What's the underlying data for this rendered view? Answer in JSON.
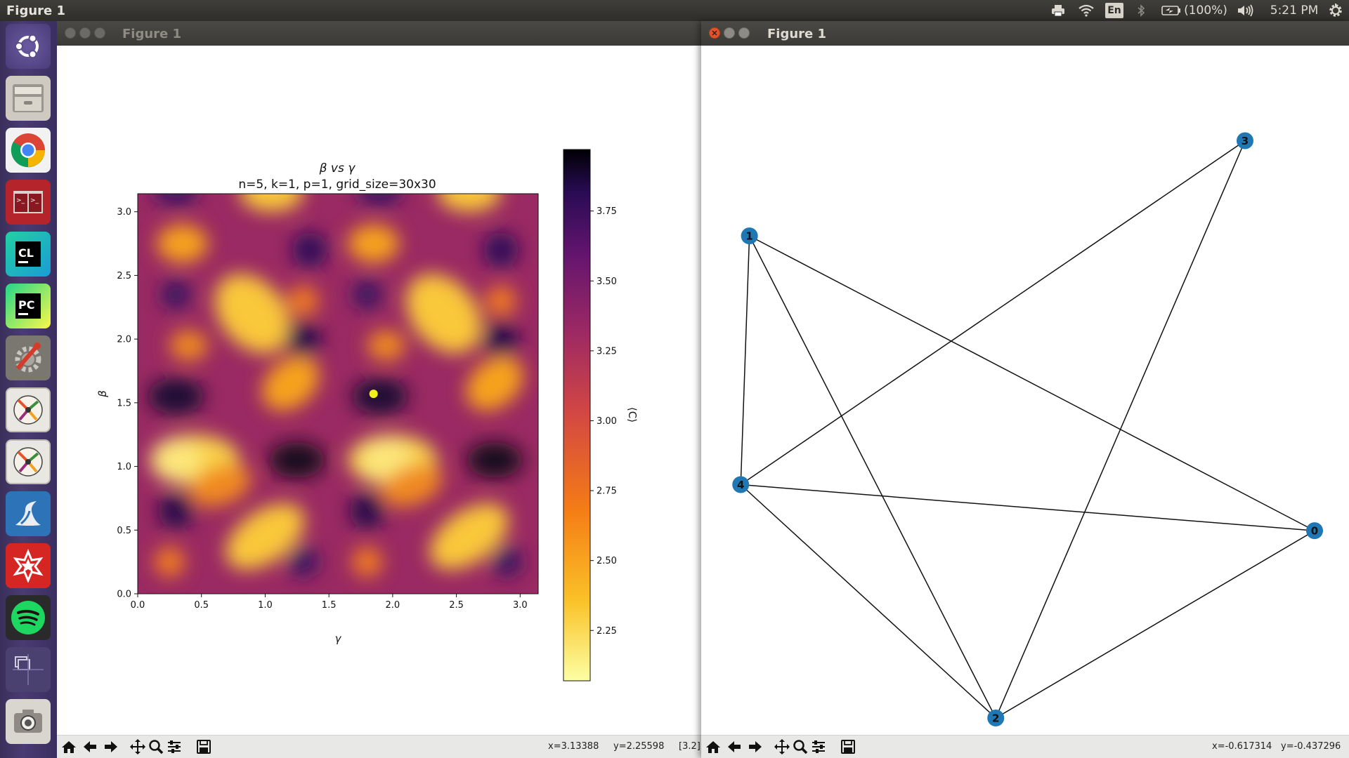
{
  "topbar": {
    "title": "Figure 1",
    "keyboard_layout": "En",
    "battery": "(100%)",
    "clock": "5:21 PM"
  },
  "launcher": {
    "items": [
      "ubuntu-dash-icon",
      "files-icon",
      "chrome-icon",
      "terminal-icon",
      "clion-icon",
      "pycharm-icon",
      "system-settings-icon",
      "app-icon",
      "app-icon",
      "linux-app-icon",
      "mathematica-icon",
      "spotify-icon",
      "workspace-switcher-icon",
      "screenshot-icon"
    ]
  },
  "left_window": {
    "title": "Figure 1",
    "coords": {
      "x": "x=3.13388",
      "y": "y=2.25598",
      "value": "[3.2]"
    }
  },
  "right_window": {
    "title": "Figure 1",
    "coords": {
      "x": "x=-0.617314",
      "y": "y=-0.437296"
    }
  },
  "colors": {
    "node": "#1f77b4",
    "marker": "#f2f21a",
    "close": "#e2542c"
  },
  "chart_data": [
    {
      "type": "heatmap",
      "title": "β vs γ",
      "subtitle": "n=5, k=1, p=1, grid_size=30x30",
      "xlabel": "γ",
      "ylabel": "β",
      "colorbar_label": "⟨C⟩",
      "colormap": "inferno_r",
      "xlim": [
        0,
        3.14159
      ],
      "ylim": [
        0,
        3.14159
      ],
      "xticks": [
        "0.0",
        "0.5",
        "1.0",
        "1.5",
        "2.0",
        "2.5",
        "3.0"
      ],
      "yticks": [
        "0.0",
        "0.5",
        "1.0",
        "1.5",
        "2.0",
        "2.5",
        "3.0"
      ],
      "colorbar_range": [
        2.07,
        3.97
      ],
      "colorbar_ticks": [
        "2.25",
        "2.50",
        "2.75",
        "3.00",
        "3.25",
        "3.50",
        "3.75"
      ],
      "marker": {
        "gamma": 1.85,
        "beta": 1.57
      }
    },
    {
      "type": "graph",
      "nodes": [
        {
          "id": "0",
          "x": 1.0,
          "y": -0.39
        },
        {
          "id": "1",
          "x": -0.95,
          "y": 0.57
        },
        {
          "id": "2",
          "x": -0.1,
          "y": -1.0
        },
        {
          "id": "3",
          "x": 0.76,
          "y": 0.88
        },
        {
          "id": "4",
          "x": -0.98,
          "y": -0.24
        }
      ],
      "edges": [
        [
          "0",
          "1"
        ],
        [
          "0",
          "2"
        ],
        [
          "0",
          "4"
        ],
        [
          "1",
          "2"
        ],
        [
          "1",
          "4"
        ],
        [
          "2",
          "3"
        ],
        [
          "2",
          "4"
        ],
        [
          "3",
          "4"
        ]
      ]
    }
  ]
}
